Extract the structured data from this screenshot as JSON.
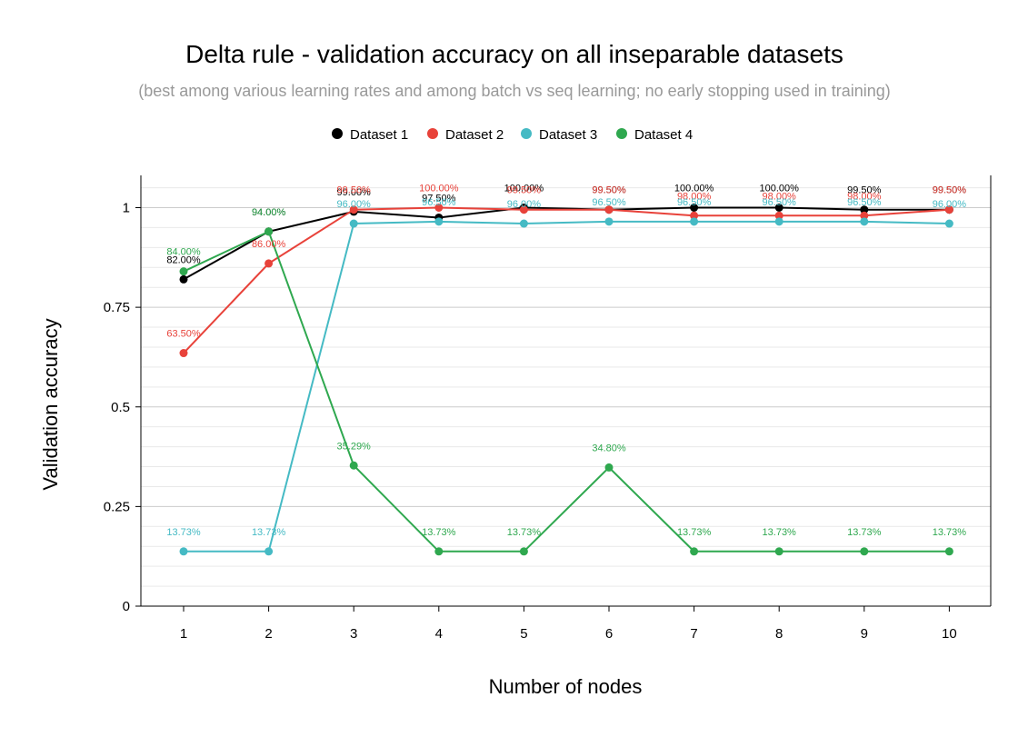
{
  "chart_data": {
    "type": "line",
    "title": "Delta rule - validation accuracy on all inseparable datasets",
    "subtitle": "(best among various learning rates and among batch vs seq learning; no early stopping used in training)",
    "xlabel": "Number of nodes",
    "ylabel": "Validation accuracy",
    "x": [
      1,
      2,
      3,
      4,
      5,
      6,
      7,
      8,
      9,
      10
    ],
    "ylim": [
      0,
      1.08
    ],
    "yticks": [
      0,
      0.25,
      0.5,
      0.75,
      1
    ],
    "ytick_labels": [
      "0",
      "0.25",
      "0.5",
      "0.75",
      "1"
    ],
    "grid": true,
    "legend_position": "top-center",
    "series": [
      {
        "name": "Dataset 1",
        "color": "#000000",
        "values": [
          0.82,
          0.94,
          0.99,
          0.975,
          1.0,
          0.995,
          1.0,
          1.0,
          0.995,
          0.995
        ],
        "labels": [
          "82.00%",
          "94.00%",
          "99.00%",
          "97.50%",
          "100.00%",
          "99.50%",
          "100.00%",
          "100.00%",
          "99.50%",
          "99.50%"
        ]
      },
      {
        "name": "Dataset 2",
        "color": "#e8423a",
        "values": [
          0.635,
          0.86,
          0.995,
          1.0,
          0.995,
          0.995,
          0.98,
          0.98,
          0.98,
          0.995
        ],
        "labels": [
          "63.50%",
          "86.00%",
          "99.50%",
          "100.00%",
          "99.50%",
          "99.50%",
          "98.00%",
          "98.00%",
          "98.00%",
          "99.50%"
        ]
      },
      {
        "name": "Dataset 3",
        "color": "#45bac4",
        "values": [
          0.1373,
          0.1373,
          0.96,
          0.965,
          0.96,
          0.965,
          0.965,
          0.965,
          0.965,
          0.96
        ],
        "labels": [
          "13.73%",
          "13.73%",
          "96.00%",
          "96.50%",
          "96.00%",
          "96.50%",
          "96.50%",
          "96.50%",
          "96.50%",
          "96.00%"
        ]
      },
      {
        "name": "Dataset 4",
        "color": "#2fa84f",
        "values": [
          0.84,
          0.94,
          0.3529,
          0.1373,
          0.1373,
          0.348,
          0.1373,
          0.1373,
          0.1373,
          0.1373
        ],
        "labels": [
          "84.00%",
          "94.00%",
          "35.29%",
          "13.73%",
          "13.73%",
          "34.80%",
          "13.73%",
          "13.73%",
          "13.73%",
          "13.73%"
        ]
      }
    ]
  }
}
